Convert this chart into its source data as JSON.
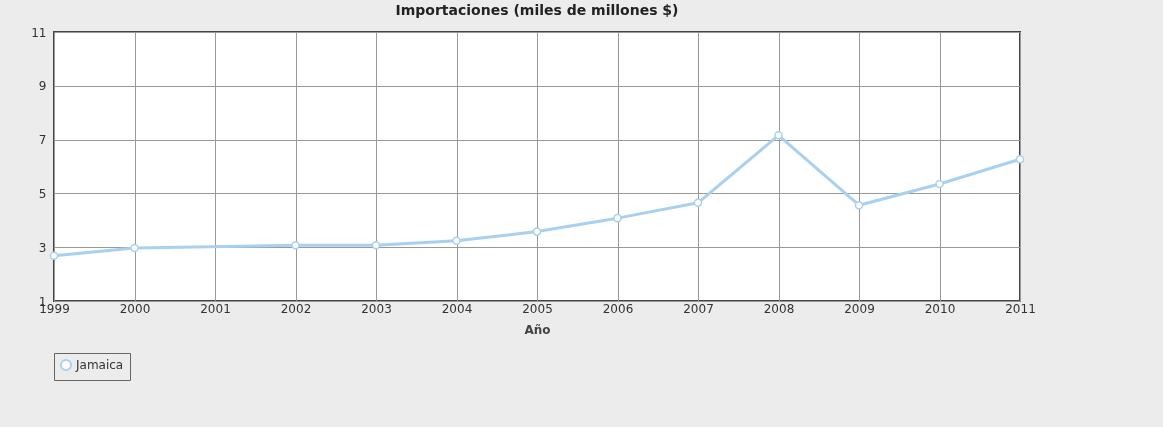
{
  "chart_data": {
    "type": "line",
    "title": "Importaciones (miles de millones $)",
    "xlabel": "Año",
    "x": [
      1999,
      2000,
      2002,
      2003,
      2004,
      2005,
      2006,
      2007,
      2008,
      2009,
      2010,
      2011
    ],
    "series": [
      {
        "name": "Jamaica",
        "color": "#a8d0f0",
        "values": [
          2.68,
          2.97,
          3.07,
          3.07,
          3.24,
          3.58,
          4.08,
          4.65,
          7.16,
          4.56,
          5.35,
          6.27
        ]
      }
    ],
    "xlim": [
      1999,
      2011
    ],
    "xticks": [
      1999,
      2000,
      2001,
      2002,
      2003,
      2004,
      2005,
      2006,
      2007,
      2008,
      2009,
      2010,
      2011
    ],
    "ylim": [
      1,
      11
    ],
    "yticks": [
      1,
      3,
      5,
      7,
      9,
      11
    ],
    "grid": true,
    "legend": "bottom",
    "marker": "circle",
    "line_style": "solid"
  }
}
